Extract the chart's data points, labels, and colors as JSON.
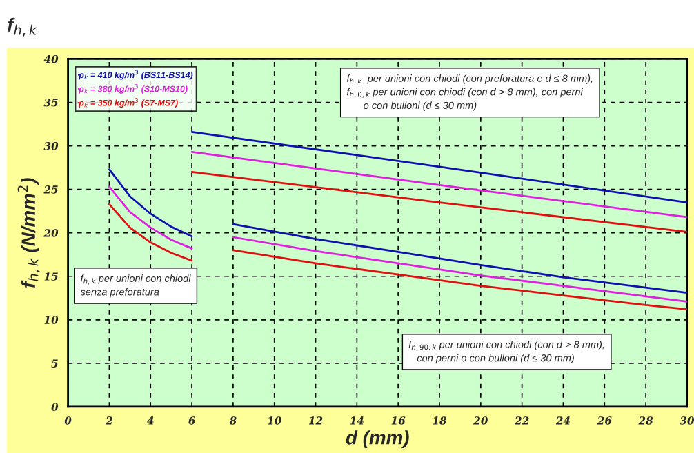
{
  "chart_data": {
    "type": "line",
    "title": "f$_{h,k}$",
    "xlabel": "d (mm)",
    "ylabel": "f$_{h,k}$ (N/mm$^{2}$)",
    "xlim": [
      0,
      30
    ],
    "ylim": [
      0,
      40
    ],
    "xticks": [
      0,
      2,
      4,
      6,
      8,
      10,
      12,
      14,
      16,
      18,
      20,
      22,
      24,
      26,
      28,
      30
    ],
    "yticks": [
      0,
      5,
      10,
      15,
      20,
      25,
      30,
      35,
      40
    ],
    "grid": true,
    "legend": "top left",
    "line_style": "solid",
    "marker": "none",
    "series": [
      {
        "name": "ρ$_{k}$ = 410 kg/m$^{3}$ (BS11-BS14)",
        "color": "#1010b0",
        "x": [
          2,
          3,
          4,
          5,
          6
        ],
        "values": [
          27.3,
          24.2,
          22.2,
          20.7,
          19.6
        ]
      },
      {
        "name": "ρ$_{k}$ = 380 kg/m$^{3}$ (S10-MS10)",
        "color": "#e020e0",
        "x": [
          2,
          3,
          4,
          5,
          6
        ],
        "values": [
          25.3,
          22.4,
          20.6,
          19.2,
          18.2
        ]
      },
      {
        "name": "ρ$_{k}$ = 350 kg/m$^{3}$ (S7-MS7)",
        "color": "#e01010",
        "x": [
          2,
          3,
          4,
          5,
          6
        ],
        "values": [
          23.3,
          20.6,
          18.9,
          17.7,
          16.8
        ]
      },
      {
        "color": "#1010b0",
        "x": [
          6,
          18,
          30
        ],
        "values": [
          31.6,
          27.6,
          23.5
        ]
      },
      {
        "color": "#e020e0",
        "x": [
          6,
          18,
          30
        ],
        "values": [
          29.3,
          25.5,
          21.8
        ]
      },
      {
        "color": "#e01010",
        "x": [
          6,
          18,
          30
        ],
        "values": [
          27.0,
          23.5,
          20.1
        ]
      },
      {
        "color": "#1010b0",
        "x": [
          8,
          12,
          16,
          20,
          24,
          28,
          30
        ],
        "values": [
          21.0,
          19.3,
          17.8,
          16.3,
          14.9,
          13.7,
          13.1
        ]
      },
      {
        "color": "#e020e0",
        "x": [
          8,
          12,
          16,
          20,
          24,
          28,
          30
        ],
        "values": [
          19.5,
          17.9,
          16.5,
          15.1,
          13.9,
          12.7,
          12.1
        ]
      },
      {
        "color": "#e01010",
        "x": [
          8,
          12,
          16,
          20,
          24,
          28,
          30
        ],
        "values": [
          18.0,
          16.5,
          15.2,
          13.9,
          12.8,
          11.7,
          11.2
        ]
      }
    ],
    "annotations": [
      "f$_{h,k}$ per unioni con chiodi\nsenza preforatura",
      "f$_{h,k}$  per unioni con chiodi (con preforatura e d ≤ 8 mm),\nf$_{h,0,k}$ per unioni con chiodi (con d > 8 mm), con perni\n      o con bulloni (d ≤ 30 mm)",
      "f$_{h,90,k}$ per unioni con chiodi (con d > 8 mm),\n   con perni o con bulloni (d ≤ 30 mm)"
    ]
  }
}
